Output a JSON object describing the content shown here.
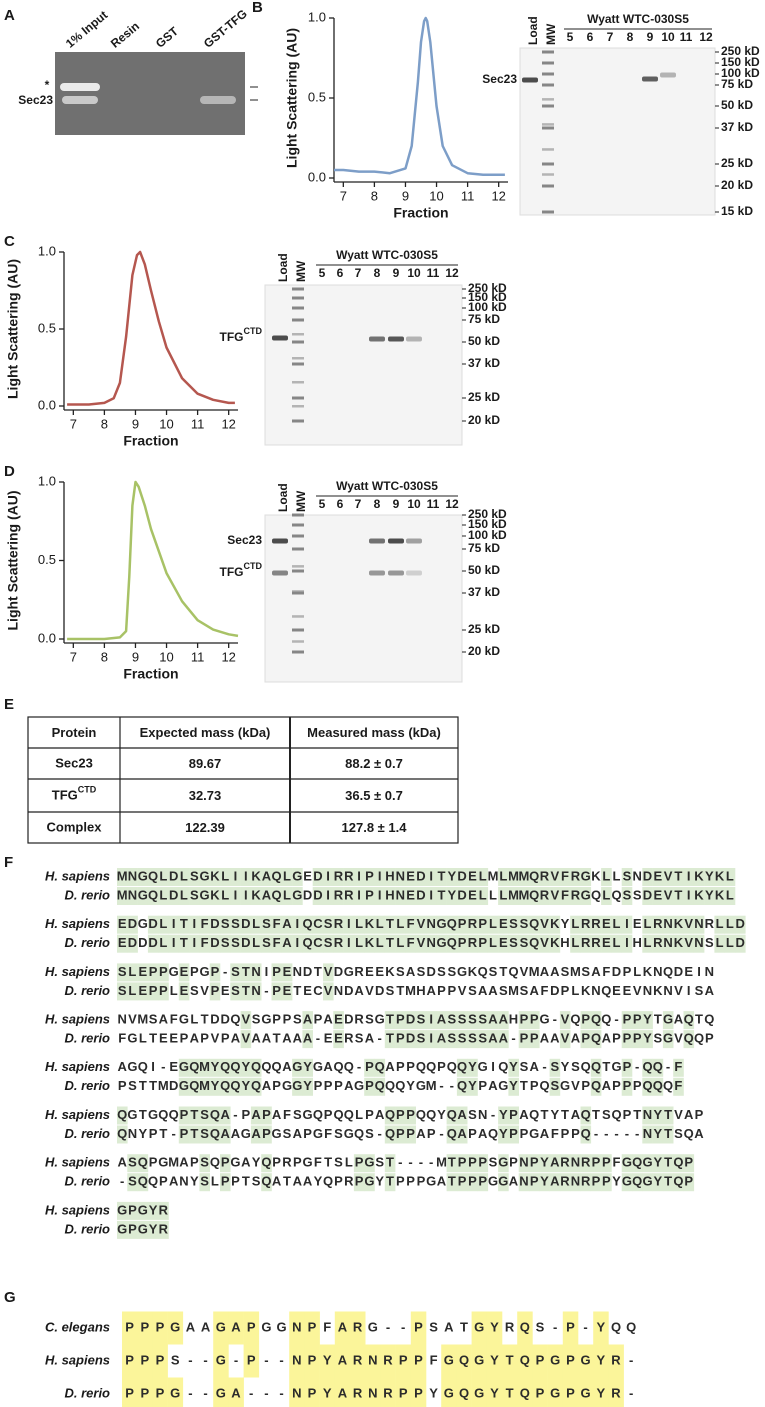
{
  "panel_a": {
    "label": "A",
    "lanes": [
      "1% Input",
      "Resin",
      "GST",
      "GST-TFG"
    ],
    "markers": [
      "*",
      "Sec23"
    ]
  },
  "panel_b": {
    "label": "B",
    "chart": {
      "type": "line",
      "ylabel": "Light Scattering (AU)",
      "xlabel": "Fraction",
      "color": "#7d9ec8",
      "x": [
        6.7,
        7,
        7.5,
        8,
        8.5,
        9,
        9.2,
        9.4,
        9.5,
        9.6,
        9.65,
        9.7,
        9.8,
        10,
        10.2,
        10.5,
        11,
        11.5,
        12,
        12.2
      ],
      "values": [
        0.05,
        0.05,
        0.04,
        0.04,
        0.03,
        0.06,
        0.2,
        0.6,
        0.85,
        0.98,
        1.0,
        0.98,
        0.85,
        0.45,
        0.2,
        0.08,
        0.03,
        0.02,
        0.02,
        0.02
      ],
      "xlim": [
        6.7,
        12.3
      ],
      "ylim": [
        0,
        1
      ],
      "xticks": [
        7,
        8,
        9,
        10,
        11,
        12
      ],
      "yticks": [
        {
          "value": 0,
          "label": "0.0"
        },
        0.5,
        {
          "value": 1,
          "label": "1.0"
        }
      ]
    },
    "gel": {
      "lanes": [
        "Load",
        "MW"
      ],
      "header": "Wyatt WTC-030S5",
      "fractions": [
        "5",
        "6",
        "7",
        "8",
        "9",
        "10",
        "11",
        "12"
      ],
      "sizes": [
        "250 kD",
        "150 kD",
        "100 kD",
        "75 kD",
        "50 kD",
        "37 kD",
        "25 kD",
        "20 kD",
        "15 kD"
      ],
      "proteins": [
        {
          "text": "Sec23"
        }
      ]
    }
  },
  "panel_c": {
    "label": "C",
    "chart": {
      "type": "line",
      "ylabel": "Light Scattering (AU)",
      "xlabel": "Fraction",
      "color": "#b5574f",
      "x": [
        6.8,
        7,
        7.5,
        8,
        8.3,
        8.5,
        8.7,
        8.9,
        9.05,
        9.15,
        9.3,
        9.5,
        9.75,
        10,
        10.5,
        11,
        11.5,
        12,
        12.2
      ],
      "values": [
        0.01,
        0.01,
        0.01,
        0.02,
        0.05,
        0.15,
        0.45,
        0.85,
        0.98,
        1.0,
        0.92,
        0.75,
        0.55,
        0.38,
        0.18,
        0.08,
        0.04,
        0.02,
        0.02
      ],
      "xlim": [
        6.7,
        12.3
      ],
      "ylim": [
        0,
        1
      ],
      "xticks": [
        7,
        8,
        9,
        10,
        11,
        12
      ],
      "yticks": [
        {
          "value": 0,
          "label": "0.0"
        },
        0.5,
        {
          "value": 1,
          "label": "1.0"
        }
      ]
    },
    "gel": {
      "lanes": [
        "Load",
        "MW"
      ],
      "header": "Wyatt WTC-030S5",
      "fractions": [
        "5",
        "6",
        "7",
        "8",
        "9",
        "10",
        "11",
        "12"
      ],
      "sizes": [
        "250 kD",
        "150 kD",
        "100 kD",
        "75 kD",
        "50 kD",
        "37 kD",
        "25 kD",
        "20 kD"
      ],
      "proteins": [
        {
          "text": "TFG",
          "sup": "CTD"
        }
      ]
    }
  },
  "panel_d": {
    "label": "D",
    "chart": {
      "type": "line",
      "ylabel": "Light Scattering (AU)",
      "xlabel": "Fraction",
      "color": "#a8c266",
      "x": [
        6.8,
        7,
        7.5,
        8,
        8.5,
        8.7,
        8.8,
        8.9,
        9.0,
        9.1,
        9.3,
        9.5,
        10,
        10.5,
        11,
        11.5,
        12,
        12.3
      ],
      "values": [
        0,
        0,
        0,
        0,
        0.01,
        0.05,
        0.4,
        0.85,
        1.0,
        0.97,
        0.85,
        0.7,
        0.42,
        0.24,
        0.12,
        0.06,
        0.03,
        0.02
      ],
      "xlim": [
        6.7,
        12.3
      ],
      "ylim": [
        0,
        1
      ],
      "xticks": [
        7,
        8,
        9,
        10,
        11,
        12
      ],
      "yticks": [
        {
          "value": 0,
          "label": "0.0"
        },
        0.5,
        {
          "value": 1,
          "label": "1.0"
        }
      ]
    },
    "gel": {
      "lanes": [
        "Load",
        "MW"
      ],
      "header": "Wyatt WTC-030S5",
      "fractions": [
        "5",
        "6",
        "7",
        "8",
        "9",
        "10",
        "11",
        "12"
      ],
      "sizes": [
        "250 kD",
        "150 kD",
        "100 kD",
        "75 kD",
        "50 kD",
        "37 kD",
        "25 kD",
        "20 kD"
      ],
      "proteins": [
        {
          "text": "Sec23"
        },
        {
          "text": "TFG",
          "sup": "CTD"
        }
      ]
    }
  },
  "panel_e": {
    "label": "E",
    "table": {
      "header": [
        "Protein",
        "Expected mass (kDa)",
        "Measured mass (kDa)"
      ],
      "rows": [
        [
          {
            "text": "Sec23"
          },
          "89.67",
          "88.2 ± 0.7"
        ],
        [
          {
            "text": "TFG",
            "sup": "CTD"
          },
          "32.73",
          "36.5 ± 0.7"
        ],
        [
          {
            "text": "Complex"
          },
          "122.39",
          "127.8 ± 1.4"
        ]
      ]
    }
  },
  "panel_f": {
    "label": "F",
    "blocks": [
      {
        "rows": [
          {
            "species": "H. sapiens",
            "seq": "MNGQLDLSGKLIIKAQLGEDIRRIPIHNEDITYDELMLMMQRVFRGKLLSNDEVTIKYKL"
          },
          {
            "species": "D. rerio",
            "seq": "MNGQLDLSGKLIIKAQLGDDIRRIPIHNEDITYDELLLMMQRVFRGQLQSSDEVTIKYKL"
          }
        ]
      },
      {
        "rows": [
          {
            "species": "H. sapiens",
            "seq": "EDGDLITIFDSSDLSFAIQCSRILKLTLFVNGQPRPLESSQVKYLRRELIELRNKVNRLLD"
          },
          {
            "species": "D. rerio",
            "seq": "EDDDLITIFDSSDLSFAIQCSRILKLTLFVNGQPRPLESSQVKHLRRELIHLRNKVNSLLD"
          }
        ]
      },
      {
        "rows": [
          {
            "species": "H. sapiens",
            "seq": "SLEPPGEPGP-STNIPENDTVDGREEKSASDSSGKQSTQVMAASMSAFDPLKNQDEIN"
          },
          {
            "species": "D. rerio",
            "seq": "SLEPPLESVPESTN-PETECVNDAVDSTMHAPPVSAASMSAFDPLKNQEEVNKNVISA"
          }
        ]
      },
      {
        "rows": [
          {
            "species": "H. sapiens",
            "seq": "NVMSAFGLTDDQVSGPPSAPAEDRSGTPDSIASSSSAAHPPG-VQPQQ-PPYTGAQTQ"
          },
          {
            "species": "D. rerio",
            "seq": "FGLTEEPAPVPAVAATAAA-EERSA-TPDSIASSSSAA-PPAAVAPQAPPPYSGVQQP"
          }
        ]
      },
      {
        "rows": [
          {
            "species": "H. sapiens",
            "seq": "AGQI-EGQMYQQYQQQAGYGAQQ-PQAPPQQPQQYGIQYSA-SYSQQTGP-QQ-F"
          },
          {
            "species": "D. rerio",
            "seq": "PSTTMDGQMYQQYQAPGGYPPPAGPQQQYGM--QYPAGYTPQSGVPQAPPPQQQF"
          }
        ]
      },
      {
        "rows": [
          {
            "species": "H. sapiens",
            "seq": "QGTGQQPTSQA-PAPAFSGQPQQLPAQPPQQYQASN-YPAQTYTAQTSQPTNYTVAP"
          },
          {
            "species": "D. rerio",
            "seq": "QNYPT-PTSQAAGAPGSAPGFSGQS-QPPAP-QAPAQYPPGAFPPQ-----NYTSQA"
          }
        ]
      },
      {
        "rows": [
          {
            "species": "H. sapiens",
            "seq": "ASQPGMAPSQPGAYQPRPGFTSLPGST----MTPPPSGPNPYARNRPPFGQGYTQP"
          },
          {
            "species": "D. rerio",
            "seq": "-SQQPANYSLPPTSQATAAYQPRPGYTPPPGATPPPGGANPYARNRPPYGQGYTQP"
          }
        ]
      },
      {
        "rows": [
          {
            "species": "H. sapiens",
            "seq": "GPGYR"
          },
          {
            "species": "D. rerio",
            "seq": "GPGYR"
          }
        ]
      }
    ]
  },
  "panel_g": {
    "label": "G",
    "rows": [
      {
        "species": "C. elegans",
        "seq": "PPPGAAGAPGGNPFARG--PSATGYRQS-P-YQQ"
      },
      {
        "species": "H. sapiens",
        "seq": "PPPS--G-P--NPYARNRPPFGQGYTQPGPGYR-"
      },
      {
        "species": "D. rerio",
        "seq": "PPPG--GA---NPYARNRPPYGQGYTQPGPGYR-"
      }
    ]
  }
}
